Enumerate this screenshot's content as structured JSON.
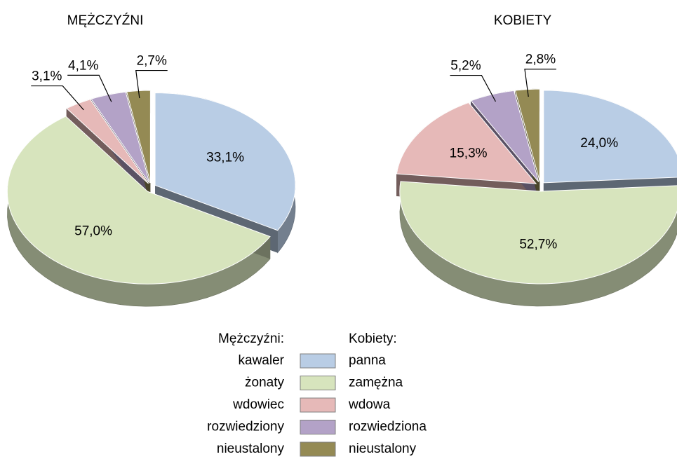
{
  "chart_data": [
    {
      "type": "pie",
      "title": "MĘŻCZYŹNI",
      "legend_title": "Mężczyźni:",
      "categories": [
        "kawaler",
        "żonaty",
        "wdowiec",
        "rozwiedziony",
        "nieustalony"
      ],
      "values": [
        33.1,
        57.0,
        3.1,
        4.1,
        2.7
      ],
      "value_labels": [
        "33,1%",
        "57,0%",
        "3,1%",
        "4,1%",
        "2,7%"
      ],
      "colors": [
        "#b9cde5",
        "#d7e4bd",
        "#e6b9b8",
        "#b3a2c7",
        "#948a54"
      ]
    },
    {
      "type": "pie",
      "title": "KOBIETY",
      "legend_title": "Kobiety:",
      "categories": [
        "panna",
        "zamężna",
        "wdowa",
        "rozwiedziona",
        "nieustalony"
      ],
      "values": [
        24.0,
        52.7,
        15.3,
        5.2,
        2.8
      ],
      "value_labels": [
        "24,0%",
        "52,7%",
        "15,3%",
        "5,2%",
        "2,8%"
      ],
      "colors": [
        "#b9cde5",
        "#d7e4bd",
        "#e6b9b8",
        "#b3a2c7",
        "#948a54"
      ]
    }
  ]
}
